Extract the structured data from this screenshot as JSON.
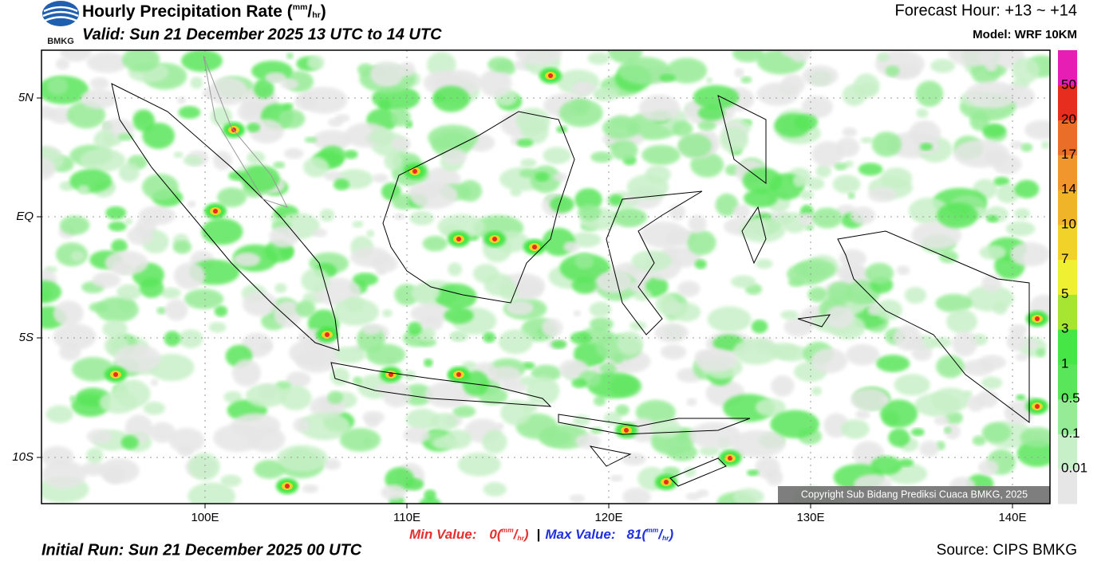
{
  "header": {
    "logo": "BMKG",
    "title": "Hourly Precipitation Rate",
    "unit_parts": [
      "(",
      "mm",
      "/",
      "hr",
      ")"
    ],
    "valid": "Valid: Sun 21 December 2025 13 UTC to 14 UTC",
    "forecast_hour": "Forecast Hour: +13 ~ +14",
    "model": "Model: WRF 10KM"
  },
  "map": {
    "lat_labels": [
      "5N",
      "EQ",
      "5S",
      "10S"
    ],
    "lon_labels": [
      "100E",
      "110E",
      "120E",
      "130E",
      "140E"
    ],
    "copyright": "Copyright Sub Bidang Prediksi Cuaca BMKG, 2025"
  },
  "colorbar": {
    "labels": [
      "0.01",
      "0.1",
      "0.5",
      "1",
      "3",
      "5",
      "7",
      "10",
      "14",
      "17",
      "20",
      "50"
    ],
    "colors": [
      "#e6e6e6",
      "#c8f0c8",
      "#96eb96",
      "#5ae65a",
      "#46e646",
      "#a6e632",
      "#f0f032",
      "#f0d228",
      "#f0b428",
      "#f0962d",
      "#eb6e28",
      "#e62d1e",
      "#e61eb4"
    ]
  },
  "footer": {
    "min_label": "Min Value:",
    "min_value": "0",
    "separator": "|",
    "max_label": "Max Value:",
    "max_value": "81",
    "initial_run": "Initial Run: Sun 21 December 2025 00 UTC",
    "source": "Source: CIPS BMKG"
  }
}
